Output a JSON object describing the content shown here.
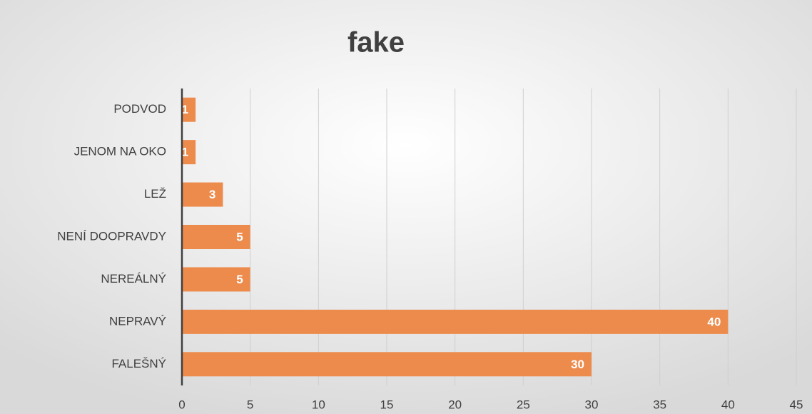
{
  "chart_data": {
    "type": "hbar",
    "title": "fake",
    "categories": [
      "PODVOD",
      "JENOM NA OKO",
      "LEŽ",
      "NENÍ DOOPRAVDY",
      "NEREÁLNÝ",
      "NEPRAVÝ",
      "FALEŠNÝ"
    ],
    "values": [
      1,
      1,
      3,
      5,
      5,
      40,
      30
    ],
    "color": "#ed8b4c",
    "xlim": [
      0,
      45
    ],
    "xticks": [
      0,
      5,
      10,
      15,
      20,
      25,
      30,
      35,
      40,
      45
    ],
    "grid": true
  }
}
